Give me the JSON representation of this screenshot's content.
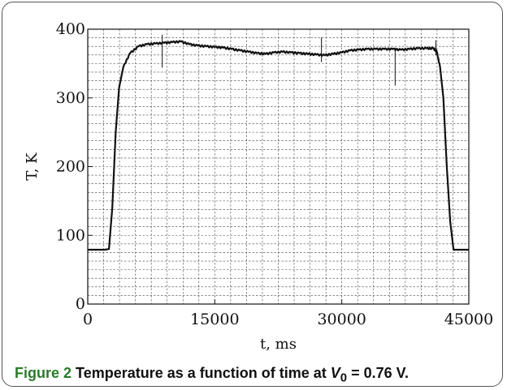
{
  "chart_data": {
    "type": "line",
    "title": "",
    "xlabel": "t, ms",
    "ylabel": "T, K",
    "xlim": [
      0,
      45000
    ],
    "ylim": [
      0,
      400
    ],
    "x_ticks": [
      0,
      15000,
      30000,
      45000
    ],
    "y_ticks": [
      0,
      100,
      200,
      300,
      400
    ],
    "x_tick_labels": [
      "0",
      "15000",
      "30000",
      "45000"
    ],
    "y_tick_labels": [
      "0",
      "100",
      "200",
      "300",
      "400"
    ],
    "grid": true,
    "grid_style": "dashed",
    "series": [
      {
        "color": "#111111",
        "points": [
          [
            0,
            79
          ],
          [
            2000,
            79
          ],
          [
            2500,
            80
          ],
          [
            2900,
            140
          ],
          [
            3300,
            250
          ],
          [
            3700,
            315
          ],
          [
            4200,
            345
          ],
          [
            5000,
            365
          ],
          [
            6000,
            375
          ],
          [
            7000,
            378
          ],
          [
            8000,
            379
          ],
          [
            9000,
            380
          ],
          [
            10000,
            381
          ],
          [
            11000,
            382
          ],
          [
            12000,
            378
          ],
          [
            13000,
            376
          ],
          [
            14000,
            375
          ],
          [
            15000,
            374
          ],
          [
            16000,
            373
          ],
          [
            17000,
            371
          ],
          [
            18000,
            369
          ],
          [
            19000,
            367
          ],
          [
            20000,
            365
          ],
          [
            21000,
            364
          ],
          [
            22000,
            366
          ],
          [
            23000,
            367
          ],
          [
            24000,
            366
          ],
          [
            25000,
            365
          ],
          [
            26000,
            364
          ],
          [
            27000,
            363
          ],
          [
            28000,
            362
          ],
          [
            29000,
            364
          ],
          [
            30000,
            366
          ],
          [
            31000,
            369
          ],
          [
            32000,
            370
          ],
          [
            33000,
            371
          ],
          [
            34000,
            371
          ],
          [
            35000,
            371
          ],
          [
            36000,
            371
          ],
          [
            37000,
            370
          ],
          [
            38000,
            371
          ],
          [
            39000,
            372
          ],
          [
            40000,
            372
          ],
          [
            40800,
            372
          ],
          [
            41200,
            368
          ],
          [
            41600,
            345
          ],
          [
            42000,
            300
          ],
          [
            42400,
            200
          ],
          [
            42800,
            120
          ],
          [
            43200,
            79
          ],
          [
            45000,
            79
          ]
        ],
        "spikes": [
          {
            "x": 8800,
            "low": 344,
            "high": 392
          },
          {
            "x": 27600,
            "low": 352,
            "high": 388
          },
          {
            "x": 36300,
            "low": 318,
            "high": 373
          },
          {
            "x": 41100,
            "low": 362,
            "high": 384
          }
        ]
      }
    ]
  },
  "caption": {
    "label": "Figure 2",
    "text_before": "Temperature as a function of time at ",
    "var_symbol": "V",
    "var_subscript": "0",
    "text_after": " = 0.76 V."
  }
}
